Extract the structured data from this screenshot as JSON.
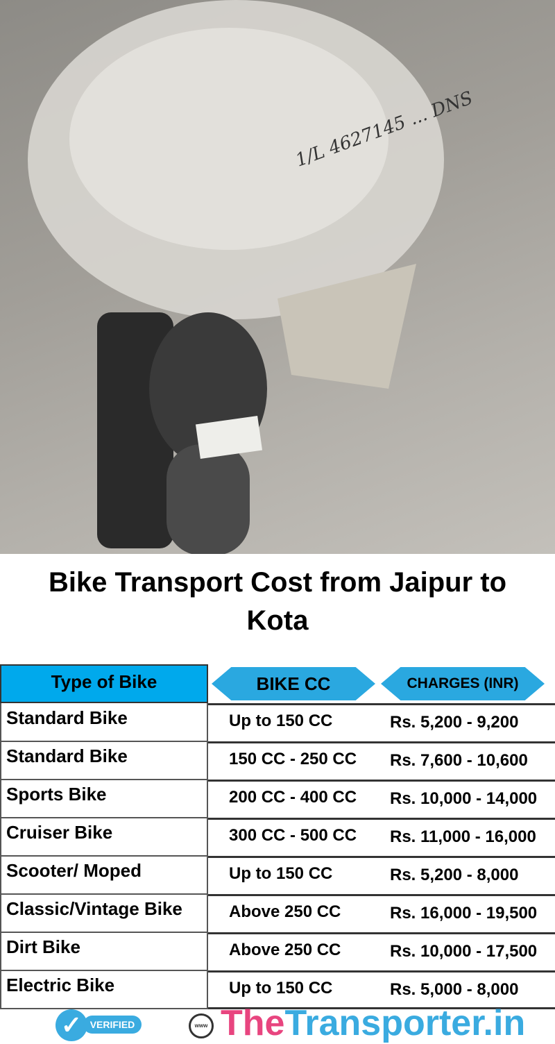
{
  "title": "Bike Transport Cost from Jaipur to Kota",
  "photo": {
    "handwriting": "1/L 4627145 ... DNS"
  },
  "table": {
    "headers": {
      "type": "Type of Bike",
      "cc": "BIKE CC",
      "charges": "CHARGES (INR)"
    },
    "rows": [
      {
        "type": "Standard Bike",
        "cc": "Up to 150 CC",
        "charges": "Rs. 5,200 - 9,200"
      },
      {
        "type": "Standard Bike",
        "cc": "150 CC - 250 CC",
        "charges": "Rs. 7,600 - 10,600"
      },
      {
        "type": "Sports Bike",
        "cc": "200 CC - 400 CC",
        "charges": "Rs. 10,000 - 14,000"
      },
      {
        "type": "Cruiser Bike",
        "cc": "300 CC - 500 CC",
        "charges": "Rs. 11,000 - 16,000"
      },
      {
        "type": "Scooter/ Moped",
        "cc": "Up to 150 CC",
        "charges": "Rs. 5,200 - 8,000"
      },
      {
        "type": "Classic/Vintage Bike",
        "cc": "Above 250 CC",
        "charges": "Rs. 16,000 - 19,500"
      },
      {
        "type": "Dirt Bike",
        "cc": "Above 250 CC",
        "charges": "Rs. 10,000 - 17,500"
      },
      {
        "type": "Electric Bike",
        "cc": "Up to 150 CC",
        "charges": "Rs. 5,000 - 8,000"
      }
    ]
  },
  "footer": {
    "verified": "VERIFIED",
    "globe_label": "www",
    "brand_part1": "The",
    "brand_part2": "Transporter.in"
  },
  "colors": {
    "header_blue": "#00a9ec",
    "brand_pink": "#e8457f",
    "brand_blue": "#3aabe0"
  }
}
